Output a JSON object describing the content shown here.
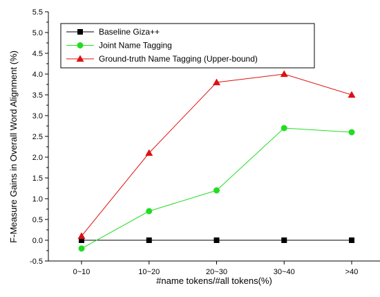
{
  "chart_data": {
    "type": "line",
    "title": "",
    "xlabel": "#name tokens/#all tokens(%)",
    "ylabel": "F-Measure Gains in Overall Word Alignment (%)",
    "categories": [
      "0~10",
      "10~20",
      "20~30",
      "30~40",
      ">40"
    ],
    "ylim": [
      -0.5,
      5.5
    ],
    "yticks": [
      "-0.5",
      "0.0",
      "0.5",
      "1.0",
      "1.5",
      "2.0",
      "2.5",
      "3.0",
      "3.5",
      "4.0",
      "4.5",
      "5.0",
      "5.5"
    ],
    "grid": false,
    "legend_position": "top-left",
    "series": [
      {
        "name": "Baseline Giza++",
        "values": [
          0,
          0,
          0,
          0,
          0
        ],
        "color": "#000000",
        "marker": "square"
      },
      {
        "name": "Joint Name Tagging",
        "values": [
          -0.2,
          0.7,
          1.2,
          2.7,
          2.6
        ],
        "color": "#22dd22",
        "marker": "circle"
      },
      {
        "name": "Ground-truth Name Tagging (Upper-bound)",
        "values": [
          0.1,
          2.1,
          3.8,
          4.0,
          3.5
        ],
        "color": "#dd1111",
        "marker": "triangle"
      }
    ]
  }
}
